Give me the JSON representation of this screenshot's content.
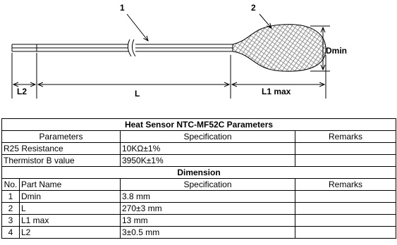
{
  "diagram": {
    "labels": {
      "wire": "1",
      "head": "2",
      "dmin": "Dmin",
      "l2": "L2",
      "l": "L",
      "l1": "L1 max"
    }
  },
  "table": {
    "title": "Heat Sensor NTC-MF52C Parameters",
    "param_header": [
      "Parameters",
      "Specification",
      "Remarks"
    ],
    "param_rows": [
      [
        "R25 Resistance",
        "10KΩ±1%",
        ""
      ],
      [
        "Thermistor B value",
        "3950K±1%",
        ""
      ]
    ],
    "section": "Dimension",
    "dim_header": [
      "No.",
      "Part Name",
      "Specification",
      "Remarks"
    ],
    "dim_rows": [
      [
        "1",
        "Dmin",
        "3.8 mm"
      ],
      [
        "2",
        "L",
        "270±3 mm"
      ],
      [
        "3",
        "L1 max",
        "13 mm"
      ],
      [
        "4",
        "L2",
        "3±0.5 mm"
      ]
    ]
  }
}
